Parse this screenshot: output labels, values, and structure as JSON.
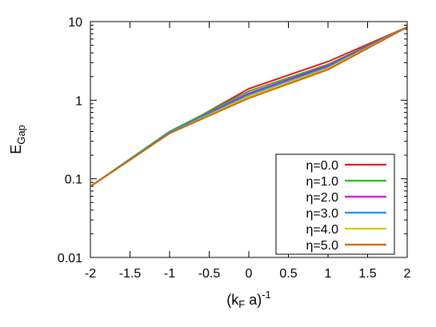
{
  "chart_data": {
    "type": "line",
    "title": "",
    "xlabel": "(k",
    "xlabel_sub": "F",
    "xlabel_rest": " a)",
    "xlabel_sup": "-1",
    "ylabel": "E",
    "ylabel_sub": "Gap",
    "xlim": [
      -2,
      2
    ],
    "ylim": [
      0.01,
      10
    ],
    "yscale": "log",
    "grid": false,
    "legend_position": "bottom-right",
    "x_ticks": [
      -2,
      -1.5,
      -1,
      -0.5,
      0,
      0.5,
      1,
      1.5,
      2
    ],
    "x_tick_labels": [
      "-2",
      "-1.5",
      "-1",
      "-0.5",
      "0",
      "0.5",
      "1",
      "1.5",
      "2"
    ],
    "y_ticks": [
      0.01,
      0.1,
      1,
      10
    ],
    "y_tick_labels": [
      "0.01",
      "0.1",
      "1",
      "10"
    ],
    "x": [
      -2,
      -1,
      0,
      1,
      2
    ],
    "series": [
      {
        "name": "η=0.0",
        "color": "#e41a1c",
        "values": [
          0.08,
          0.38,
          1.4,
          3.1,
          8.5
        ]
      },
      {
        "name": "η=1.0",
        "color": "#22bb22",
        "values": [
          0.08,
          0.4,
          1.3,
          2.85,
          8.5
        ]
      },
      {
        "name": "η=2.0",
        "color": "#e000e0",
        "values": [
          0.08,
          0.39,
          1.22,
          2.75,
          8.5
        ]
      },
      {
        "name": "η=3.0",
        "color": "#1e90ff",
        "values": [
          0.08,
          0.39,
          1.17,
          2.65,
          8.5
        ]
      },
      {
        "name": "η=4.0",
        "color": "#cccc00",
        "values": [
          0.08,
          0.38,
          1.12,
          2.55,
          8.5
        ]
      },
      {
        "name": "η=5.0",
        "color": "#cc6600",
        "values": [
          0.08,
          0.38,
          1.06,
          2.45,
          8.5
        ]
      }
    ]
  }
}
